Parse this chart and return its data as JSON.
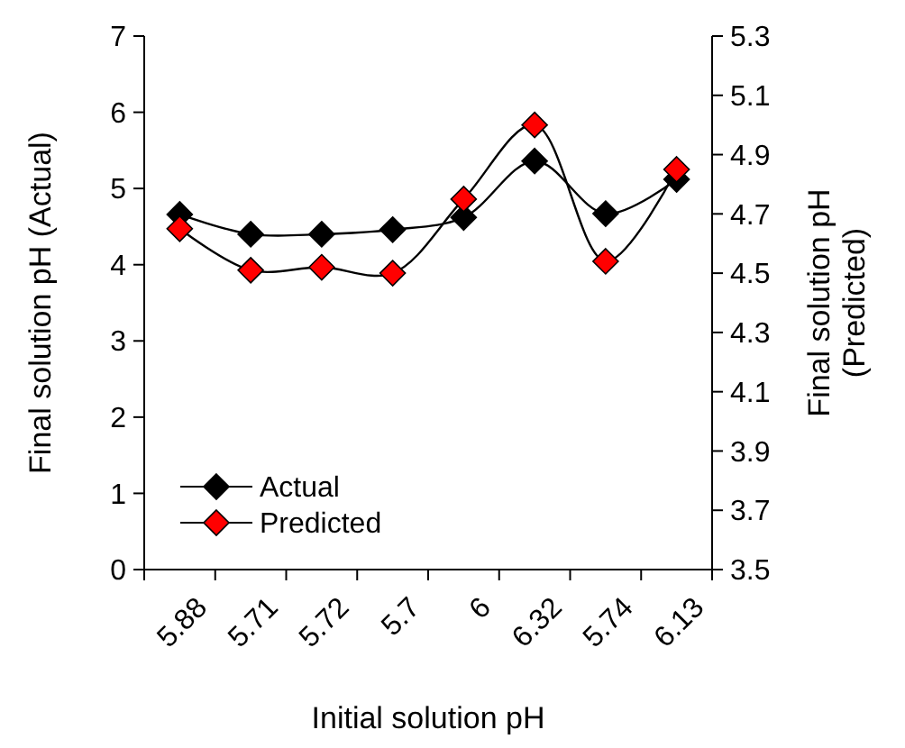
{
  "chart_data": {
    "type": "line",
    "xlabel": "Initial solution pH",
    "ylabel": "Final solution pH (Actual)",
    "y2label": "Final solution pH\n(Predicted)",
    "categories": [
      "5.88",
      "5.71",
      "5.72",
      "5.7",
      "6",
      "6.32",
      "5.74",
      "6.13"
    ],
    "series": [
      {
        "name": "Actual",
        "color": "#000000",
        "values": [
          4.66,
          4.4,
          4.4,
          4.46,
          4.62,
          5.36,
          4.67,
          5.12
        ]
      },
      {
        "name": "Predicted",
        "color": "#ff0000",
        "axis": "y2",
        "values": [
          4.65,
          4.51,
          4.52,
          4.5,
          4.75,
          5.0,
          4.54,
          4.85
        ]
      }
    ],
    "ylim": [
      0,
      7
    ],
    "yticks": [
      0,
      1,
      2,
      3,
      4,
      5,
      6,
      7
    ],
    "y2lim": [
      3.5,
      5.3
    ],
    "y2ticks": [
      3.5,
      3.7,
      3.9,
      4.1,
      4.3,
      4.5,
      4.7,
      4.9,
      5.1,
      5.3
    ],
    "marker": "diamond",
    "line_style": "solid",
    "legend": "bottom left",
    "grid": false
  }
}
